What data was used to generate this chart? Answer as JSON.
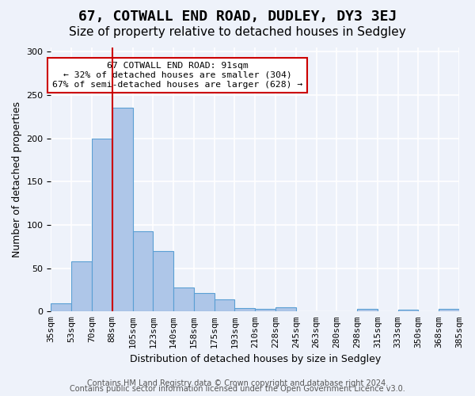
{
  "title": "67, COTWALL END ROAD, DUDLEY, DY3 3EJ",
  "subtitle": "Size of property relative to detached houses in Sedgley",
  "xlabel": "Distribution of detached houses by size in Sedgley",
  "ylabel": "Number of detached properties",
  "categories": [
    "35sqm",
    "53sqm",
    "70sqm",
    "88sqm",
    "105sqm",
    "123sqm",
    "140sqm",
    "158sqm",
    "175sqm",
    "193sqm",
    "210sqm",
    "228sqm",
    "245sqm",
    "263sqm",
    "280sqm",
    "298sqm",
    "315sqm",
    "333sqm",
    "350sqm",
    "368sqm",
    "385sqm"
  ],
  "values": [
    9,
    58,
    200,
    235,
    93,
    70,
    28,
    21,
    14,
    4,
    3,
    5,
    0,
    0,
    0,
    3,
    0,
    2,
    0,
    3
  ],
  "bar_color": "#aec6e8",
  "bar_edge_color": "#5a9fd4",
  "annotation_line_bin": 3,
  "annotation_line_color": "#cc0000",
  "annotation_box_text": "67 COTWALL END ROAD: 91sqm\n← 32% of detached houses are smaller (304)\n67% of semi-detached houses are larger (628) →",
  "annotation_box_color": "white",
  "annotation_box_edge_color": "#cc0000",
  "ylim": [
    0,
    305
  ],
  "yticks": [
    0,
    50,
    100,
    150,
    200,
    250,
    300
  ],
  "footer1": "Contains HM Land Registry data © Crown copyright and database right 2024.",
  "footer2": "Contains public sector information licensed under the Open Government Licence v3.0.",
  "bg_color": "#eef2fa",
  "grid_color": "white",
  "title_fontsize": 13,
  "subtitle_fontsize": 11,
  "axis_label_fontsize": 9,
  "tick_fontsize": 8,
  "footer_fontsize": 7
}
